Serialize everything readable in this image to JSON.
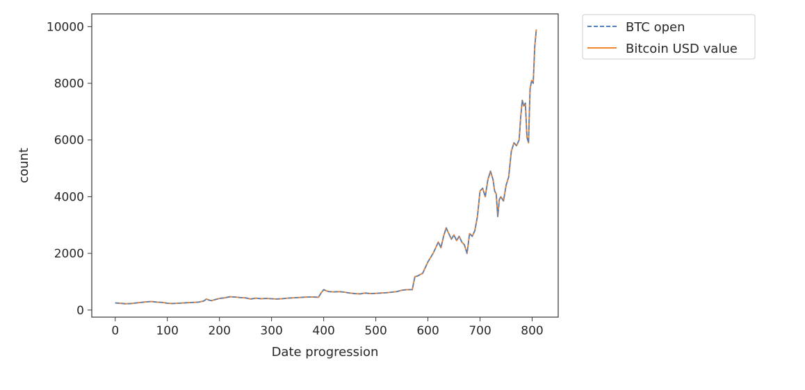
{
  "chart_data": {
    "type": "line",
    "title": "",
    "xlabel": "Date progression",
    "ylabel": "count",
    "xlim": [
      -45,
      850
    ],
    "ylim": [
      -250,
      10450
    ],
    "xticks": [
      0,
      100,
      200,
      300,
      400,
      500,
      600,
      700,
      800
    ],
    "yticks": [
      0,
      2000,
      4000,
      6000,
      8000,
      10000
    ],
    "grid": false,
    "legend_position": "outside-top-right",
    "series": [
      {
        "name": "BTC open",
        "color": "#4c7fbf",
        "style": "dashed",
        "x": [
          0,
          10,
          20,
          30,
          40,
          50,
          60,
          70,
          80,
          90,
          100,
          110,
          120,
          130,
          140,
          150,
          160,
          170,
          175,
          180,
          185,
          190,
          200,
          210,
          220,
          230,
          240,
          250,
          260,
          270,
          280,
          290,
          300,
          310,
          320,
          330,
          340,
          350,
          360,
          370,
          380,
          390,
          395,
          400,
          405,
          410,
          420,
          430,
          440,
          450,
          460,
          470,
          480,
          490,
          500,
          510,
          520,
          530,
          540,
          550,
          560,
          570,
          575,
          580,
          590,
          600,
          610,
          620,
          625,
          630,
          635,
          640,
          645,
          650,
          655,
          660,
          665,
          670,
          675,
          680,
          685,
          690,
          695,
          700,
          705,
          710,
          715,
          720,
          725,
          728,
          731,
          734,
          737,
          740,
          745,
          750,
          755,
          760,
          765,
          770,
          775,
          778,
          781,
          784,
          787,
          790,
          793,
          796,
          799,
          802,
          805,
          808
        ],
        "y": [
          250,
          240,
          220,
          230,
          250,
          270,
          290,
          300,
          280,
          270,
          240,
          230,
          240,
          250,
          260,
          270,
          280,
          320,
          390,
          350,
          330,
          360,
          410,
          430,
          470,
          460,
          440,
          430,
          390,
          420,
          400,
          410,
          400,
          390,
          400,
          420,
          430,
          440,
          450,
          460,
          460,
          450,
          600,
          720,
          680,
          650,
          640,
          650,
          630,
          600,
          580,
          570,
          600,
          580,
          590,
          600,
          610,
          630,
          650,
          700,
          720,
          720,
          1180,
          1200,
          1300,
          1700,
          2000,
          2400,
          2200,
          2600,
          2900,
          2700,
          2500,
          2650,
          2450,
          2600,
          2400,
          2300,
          2000,
          2700,
          2600,
          2800,
          3300,
          4200,
          4300,
          4000,
          4600,
          4900,
          4600,
          4200,
          4100,
          3300,
          3900,
          4000,
          3850,
          4400,
          4700,
          5600,
          5900,
          5800,
          6000,
          6800,
          7400,
          7200,
          7300,
          6100,
          5900,
          7800,
          8100,
          8000,
          9300,
          9900
        ]
      },
      {
        "name": "Bitcoin USD value",
        "color": "#f0852d",
        "style": "solid",
        "x": [
          0,
          10,
          20,
          30,
          40,
          50,
          60,
          70,
          80,
          90,
          100,
          110,
          120,
          130,
          140,
          150,
          160,
          170,
          175,
          180,
          185,
          190,
          200,
          210,
          220,
          230,
          240,
          250,
          260,
          270,
          280,
          290,
          300,
          310,
          320,
          330,
          340,
          350,
          360,
          370,
          380,
          390,
          395,
          400,
          405,
          410,
          420,
          430,
          440,
          450,
          460,
          470,
          480,
          490,
          500,
          510,
          520,
          530,
          540,
          550,
          560,
          570,
          575,
          580,
          590,
          600,
          610,
          620,
          625,
          630,
          635,
          640,
          645,
          650,
          655,
          660,
          665,
          670,
          675,
          680,
          685,
          690,
          695,
          700,
          705,
          710,
          715,
          720,
          725,
          728,
          731,
          734,
          737,
          740,
          745,
          750,
          755,
          760,
          765,
          770,
          775,
          778,
          781,
          784,
          787,
          790,
          793,
          796,
          799,
          802,
          805,
          808
        ],
        "y": [
          250,
          240,
          220,
          230,
          250,
          270,
          290,
          300,
          280,
          270,
          240,
          230,
          240,
          250,
          260,
          270,
          280,
          320,
          390,
          350,
          330,
          360,
          410,
          430,
          470,
          460,
          440,
          430,
          390,
          420,
          400,
          410,
          400,
          390,
          400,
          420,
          430,
          440,
          450,
          460,
          460,
          450,
          600,
          720,
          680,
          650,
          640,
          650,
          630,
          600,
          580,
          570,
          600,
          580,
          590,
          600,
          610,
          630,
          650,
          700,
          720,
          720,
          1180,
          1200,
          1300,
          1700,
          2000,
          2400,
          2200,
          2600,
          2900,
          2700,
          2500,
          2650,
          2450,
          2600,
          2400,
          2300,
          2000,
          2700,
          2600,
          2800,
          3300,
          4200,
          4300,
          4000,
          4600,
          4900,
          4600,
          4200,
          4100,
          3300,
          3900,
          4000,
          3850,
          4400,
          4700,
          5600,
          5900,
          5800,
          6000,
          6800,
          7400,
          7200,
          7300,
          6100,
          5900,
          7800,
          8100,
          8000,
          9300,
          9900
        ]
      }
    ]
  }
}
